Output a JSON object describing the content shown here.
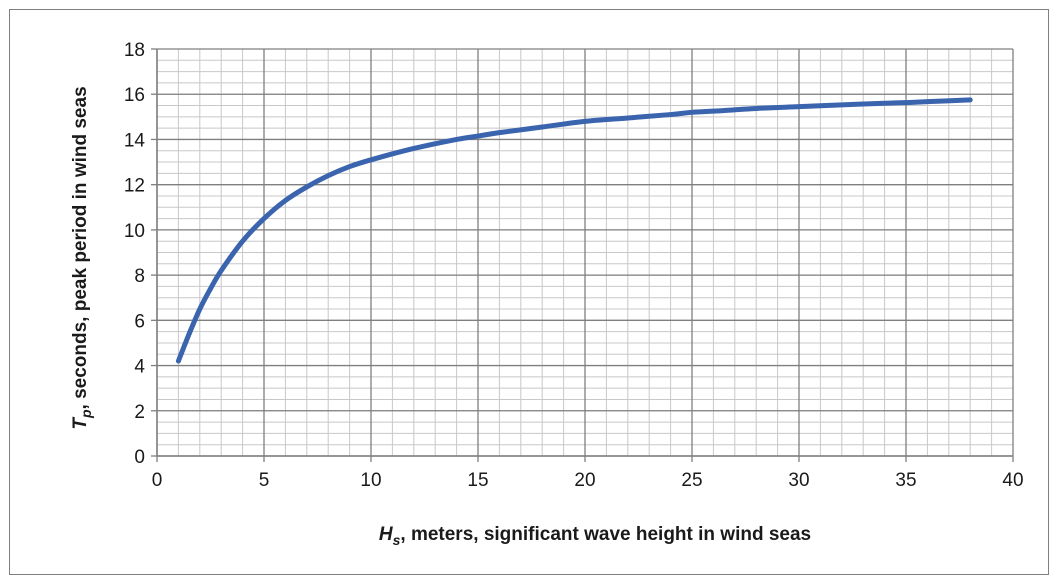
{
  "chart_data": {
    "type": "line",
    "title": "",
    "xlabel": {
      "symbol": "H",
      "subscript": "s",
      "rest": ", meters, significant wave height in wind seas"
    },
    "ylabel": {
      "symbol": "T",
      "subscript": "p",
      "rest": ", seconds, peak period in wind seas"
    },
    "xlim": [
      0,
      40
    ],
    "ylim": [
      0,
      18
    ],
    "x_major_ticks": [
      0,
      5,
      10,
      15,
      20,
      25,
      30,
      35,
      40
    ],
    "y_major_ticks": [
      0,
      2,
      4,
      6,
      8,
      10,
      12,
      14,
      16,
      18
    ],
    "x_tick_labels": [
      "0",
      "5",
      "10",
      "15",
      "20",
      "25",
      "30",
      "35",
      "40"
    ],
    "y_tick_labels": [
      "0",
      "2",
      "4",
      "6",
      "8",
      "10",
      "12",
      "14",
      "16",
      "18"
    ],
    "x_minor_step": 1,
    "y_minor_step": 0.5,
    "grid": true,
    "series": [
      {
        "name": "",
        "color": "#3a64ad",
        "x": [
          1,
          1.5,
          2,
          2.5,
          3,
          4,
          5,
          6,
          7,
          8,
          9,
          10,
          12,
          14,
          15,
          16,
          18,
          20,
          22,
          24,
          25,
          26,
          28,
          30,
          32,
          34,
          35,
          36,
          38
        ],
        "y": [
          4.2,
          5.4,
          6.5,
          7.4,
          8.2,
          9.5,
          10.5,
          11.3,
          11.9,
          12.4,
          12.8,
          13.1,
          13.6,
          14.0,
          14.15,
          14.3,
          14.55,
          14.8,
          14.95,
          15.1,
          15.2,
          15.25,
          15.37,
          15.45,
          15.53,
          15.6,
          15.63,
          15.67,
          15.75
        ]
      }
    ]
  },
  "colors": {
    "major_grid": "#7f7f7f",
    "minor_grid": "#c8c8c8",
    "axis": "#7f7f7f",
    "frame": "#7f7f7f"
  }
}
